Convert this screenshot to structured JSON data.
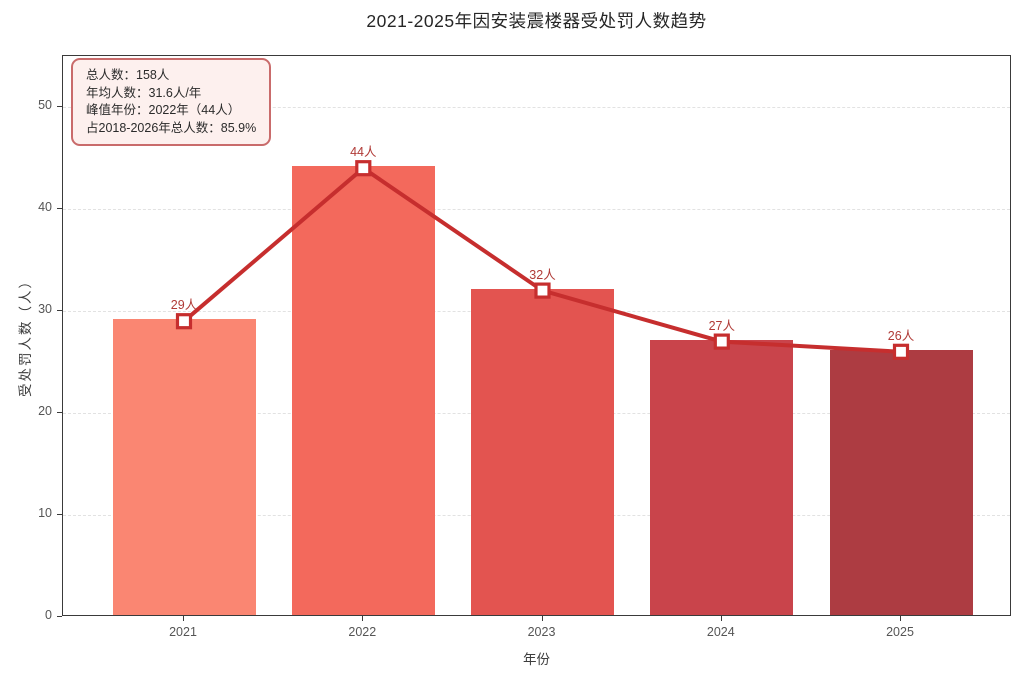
{
  "chart_data": {
    "type": "bar",
    "title": "2021-2025年因安装震楼器受处罚人数趋势",
    "xlabel": "年份",
    "ylabel": "受处罚人数（人）",
    "categories": [
      "2021",
      "2022",
      "2023",
      "2024",
      "2025"
    ],
    "series": [
      {
        "name": "受处罚人数柱状",
        "type": "bar",
        "values": [
          29,
          44,
          32,
          27,
          26
        ],
        "colors": [
          "#FA8672",
          "#F3695C",
          "#E35450",
          "#C9444B",
          "#AD3C42"
        ]
      },
      {
        "name": "受处罚人数趋势线",
        "type": "line",
        "values": [
          29,
          44,
          32,
          27,
          26
        ],
        "color": "#C62E2E",
        "marker": "square-white"
      }
    ],
    "value_labels": [
      "29人",
      "44人",
      "32人",
      "27人",
      "26人"
    ],
    "value_label_color": "#B03A36",
    "ylim": [
      0,
      55
    ],
    "yticks": [
      0,
      10,
      20,
      30,
      40,
      50
    ],
    "grid": "horizontal-dashed",
    "legend_position": "none",
    "annotation": {
      "lines": [
        "总人数：158人",
        "年均人数：31.6人/年",
        "峰值年份：2022年（44人）",
        "占2018-2026年总人数：85.9%"
      ],
      "bg_color": "#FDF0EE",
      "border_color": "#C96B6B",
      "text_color": "#2B2B2B"
    }
  }
}
